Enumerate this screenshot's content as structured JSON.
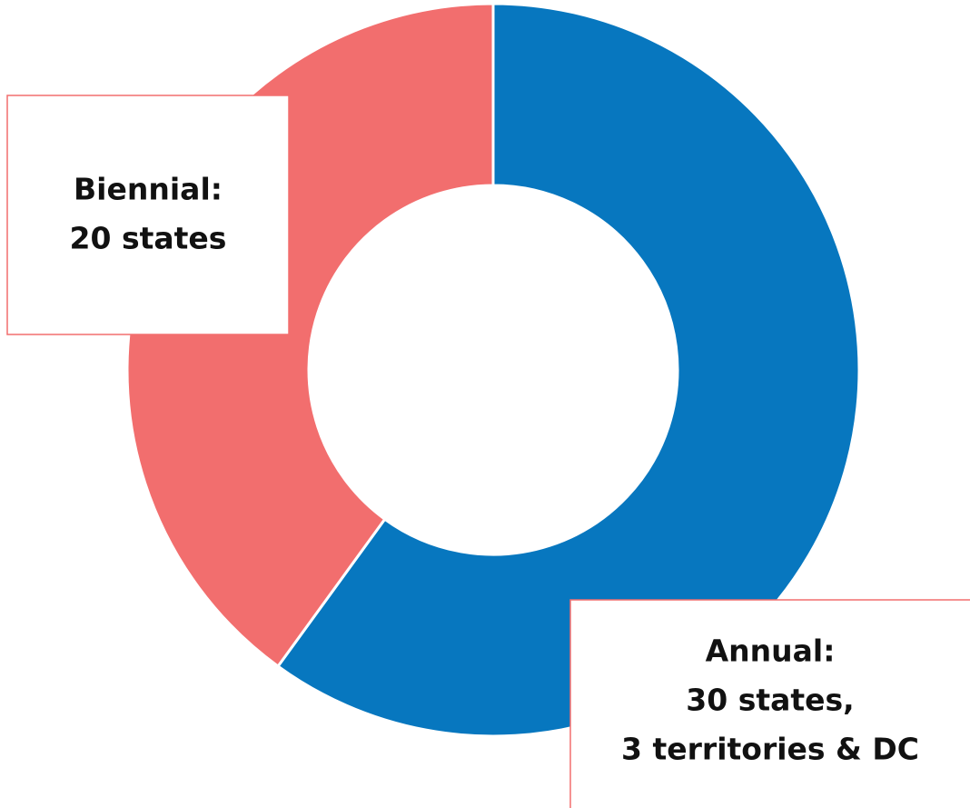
{
  "chart_data": {
    "type": "donut",
    "values": [
      30,
      20
    ],
    "value_labels": [
      [
        "Annual:",
        "30 states,",
        "3 territories & DC"
      ],
      [
        "Biennial:",
        "20 states"
      ]
    ],
    "colors": [
      "#0777bf",
      "#f26e6e"
    ]
  }
}
